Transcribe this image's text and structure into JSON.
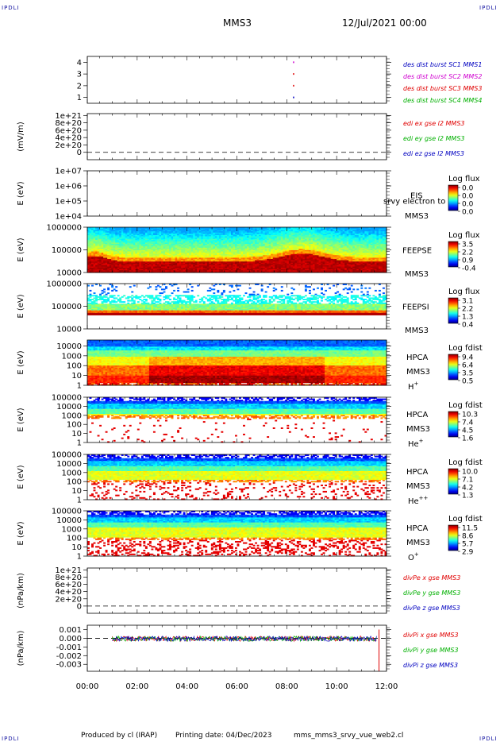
{
  "header": {
    "spacecraft": "MMS3",
    "date": "12/Jul/2021 00:00",
    "corner_label": "IPDLI"
  },
  "footer": {
    "produced_by": "Produced by cl (IRAP)",
    "printing_date": "Printing date: 04/Dec/2023",
    "filename": "mms_mms3_srvy_vue_web2.cl"
  },
  "colors": {
    "mms1": "#0000c0",
    "mms2": "#d000d0",
    "mms3": "#e00000",
    "mms4": "#00b000"
  },
  "chart_data": {
    "type": "multi-panel time series",
    "xlim": [
      "00:00",
      "12:00"
    ],
    "xticks": [
      "00:00",
      "02:00",
      "04:00",
      "06:00",
      "08:00",
      "10:00",
      "12:00"
    ],
    "panels": [
      {
        "id": "des-burst",
        "type": "scatter",
        "ylabel": "",
        "yticks": [
          "1",
          "2",
          "3",
          "4"
        ],
        "ylim": [
          0.5,
          4.5
        ],
        "legend": [
          {
            "text": "des dist burst SC1 MMS1",
            "color": "#0000c0"
          },
          {
            "text": "des dist burst SC2 MMS2",
            "color": "#d000d0"
          },
          {
            "text": "des dist burst SC3 MMS3",
            "color": "#e00000"
          },
          {
            "text": "des dist burst SC4 MMS4",
            "color": "#00b000"
          }
        ],
        "points": [
          {
            "t": 8.25,
            "y": 1,
            "color": "#0000c0"
          },
          {
            "t": 8.25,
            "y": 2,
            "color": "#e00000"
          },
          {
            "t": 8.25,
            "y": 3,
            "color": "#e00000"
          },
          {
            "t": 8.25,
            "y": 4,
            "color": "#d000d0"
          }
        ]
      },
      {
        "id": "edi",
        "type": "line",
        "ylabel": "(mV/m)",
        "yticks": [
          "0",
          "2e+20",
          "4e+20",
          "6e+20",
          "8e+20",
          "1e+21"
        ],
        "ylim": [
          -0.2,
          1.05
        ],
        "zero_line": true,
        "legend": [
          {
            "text": "edi ex gse l2 MMS3",
            "color": "#e00000"
          },
          {
            "text": "edi ey gse l2 MMS3",
            "color": "#00b000"
          },
          {
            "text": "edi ez gse l2 MMS3",
            "color": "#0000c0"
          }
        ]
      },
      {
        "id": "eis",
        "type": "heatmap",
        "ylabel": "E (eV)",
        "yticks": [
          "1e+04",
          "1e+05",
          "1e+06",
          "1e+07"
        ],
        "log": true,
        "ylim": [
          10000,
          10000000
        ],
        "instrument": "EIS",
        "instrument_extra": "srvy electron to",
        "spacecraft": "MMS3",
        "colorbar_title": "Log flux",
        "colorbar_ticks": [
          "0.0",
          "0.0",
          "0.0",
          "0.0"
        ],
        "data": "empty"
      },
      {
        "id": "feeps-e",
        "type": "heatmap",
        "ylabel": "E (eV)",
        "yticks": [
          "10000",
          "100000",
          "1000000"
        ],
        "log": true,
        "ylim": [
          10000,
          1000000
        ],
        "instrument": "FEEPSE",
        "spacecraft": "MMS3",
        "colorbar_title": "Log flux",
        "colorbar_ticks": [
          "3.5",
          "2.2",
          "0.9",
          "-0.4"
        ]
      },
      {
        "id": "feeps-i",
        "type": "heatmap",
        "ylabel": "E (eV)",
        "yticks": [
          "10000",
          "100000",
          "1000000"
        ],
        "log": true,
        "ylim": [
          10000,
          1000000
        ],
        "instrument": "FEEPSI",
        "spacecraft": "MMS3",
        "colorbar_title": "Log flux",
        "colorbar_ticks": [
          "3.1",
          "2.2",
          "1.3",
          "0.4"
        ]
      },
      {
        "id": "hpca-h",
        "type": "heatmap",
        "ylabel": "E (eV)",
        "yticks": [
          "1",
          "10",
          "100",
          "1000",
          "10000"
        ],
        "log": true,
        "ylim": [
          1,
          40000
        ],
        "instrument": "HPCA",
        "spacecraft": "MMS3",
        "species": "H",
        "species_sup": "+",
        "colorbar_title": "Log fdist",
        "colorbar_ticks": [
          "9.4",
          "6.4",
          "3.5",
          "0.5"
        ]
      },
      {
        "id": "hpca-he",
        "type": "heatmap",
        "ylabel": "E (eV)",
        "yticks": [
          "1",
          "10",
          "100",
          "1000",
          "10000",
          "100000"
        ],
        "log": true,
        "ylim": [
          1,
          100000
        ],
        "instrument": "HPCA",
        "spacecraft": "MMS3",
        "species": "He",
        "species_sup": "+",
        "colorbar_title": "Log fdist",
        "colorbar_ticks": [
          "10.3",
          "7.4",
          "4.5",
          "1.6"
        ]
      },
      {
        "id": "hpca-he2",
        "type": "heatmap",
        "ylabel": "E (eV)",
        "yticks": [
          "1",
          "10",
          "100",
          "1000",
          "10000",
          "100000"
        ],
        "log": true,
        "ylim": [
          1,
          100000
        ],
        "instrument": "HPCA",
        "spacecraft": "MMS3",
        "species": "He",
        "species_sup": "++",
        "colorbar_title": "Log fdist",
        "colorbar_ticks": [
          "10.0",
          "7.1",
          "4.2",
          "1.3"
        ]
      },
      {
        "id": "hpca-o",
        "type": "heatmap",
        "ylabel": "E (eV)",
        "yticks": [
          "1",
          "10",
          "100",
          "1000",
          "10000",
          "100000"
        ],
        "log": true,
        "ylim": [
          1,
          100000
        ],
        "instrument": "HPCA",
        "spacecraft": "MMS3",
        "species": "O",
        "species_sup": "+",
        "colorbar_title": "Log fdist",
        "colorbar_ticks": [
          "11.5",
          "8.6",
          "5.7",
          "2.9"
        ]
      },
      {
        "id": "divpe",
        "type": "line",
        "ylabel": "(nPa/km)",
        "yticks": [
          "0",
          "2e+20",
          "4e+20",
          "6e+20",
          "8e+20",
          "1e+21"
        ],
        "ylim": [
          -0.2,
          1.05
        ],
        "zero_line": true,
        "legend": [
          {
            "text": "divPe x gse MMS3",
            "color": "#e00000"
          },
          {
            "text": "divPe y gse MMS3",
            "color": "#00b000"
          },
          {
            "text": "divPe z gse MMS3",
            "color": "#0000c0"
          }
        ]
      },
      {
        "id": "divpi",
        "type": "line",
        "ylabel": "(nPa/km)",
        "yticks": [
          "0.001",
          "0.000",
          "-0.001",
          "-0.002",
          "-0.003"
        ],
        "ylim": [
          -0.0038,
          0.0015
        ],
        "zero_line": true,
        "legend": [
          {
            "text": "divPi x gse MMS3",
            "color": "#e00000"
          },
          {
            "text": "divPi y gse MMS3",
            "color": "#00b000"
          },
          {
            "text": "divPi z gse MMS3",
            "color": "#0000c0"
          }
        ],
        "series_range": {
          "t_start": 1.0,
          "t_end": 11.6,
          "y_mean": -5e-05,
          "y_spread": 0.0003
        },
        "spike": {
          "t": 11.7,
          "y_min": -0.0038,
          "y_max": 0.001,
          "color": "#e00000"
        }
      }
    ]
  }
}
